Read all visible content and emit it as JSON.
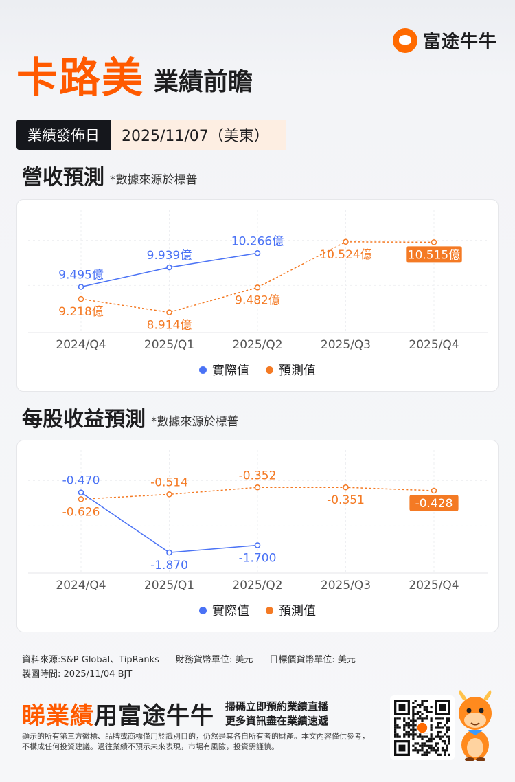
{
  "brand": {
    "name": "富途牛牛"
  },
  "header": {
    "company": "卡路美",
    "title": "業績前瞻",
    "date_label": "業績發佈日",
    "date_value": "2025/11/07（美東）"
  },
  "revenue": {
    "title": "營收預測",
    "source_note": "*數據來源於標普",
    "legend": {
      "actual": "實際值",
      "forecast": "預測值"
    }
  },
  "eps": {
    "title": "每股收益預測",
    "source_note": "*數據來源於標普",
    "legend": {
      "actual": "實際值",
      "forecast": "預測值"
    }
  },
  "colors": {
    "actual": "#4a72f5",
    "forecast": "#f47a24",
    "accent": "#ff5a00"
  },
  "chart_data": [
    {
      "type": "line",
      "categories": [
        "2024/Q4",
        "2025/Q1",
        "2025/Q2",
        "2025/Q3",
        "2025/Q4"
      ],
      "series": [
        {
          "name": "實際值",
          "values": [
            9.495,
            9.939,
            10.266,
            null,
            null
          ],
          "labels": [
            "9.495億",
            "9.939億",
            "10.266億",
            "",
            ""
          ]
        },
        {
          "name": "預測值",
          "values": [
            9.218,
            8.914,
            9.482,
            10.524,
            10.515
          ],
          "labels": [
            "9.218億",
            "8.914億",
            "9.482億",
            "10.524億",
            "10.515億"
          ]
        }
      ],
      "ylim": [
        8.5,
        10.85
      ],
      "highlight_index": 4,
      "legend_position": "bottom-center"
    },
    {
      "type": "line",
      "categories": [
        "2024/Q4",
        "2025/Q1",
        "2025/Q2",
        "2025/Q3",
        "2025/Q4"
      ],
      "series": [
        {
          "name": "實際值",
          "values": [
            -0.47,
            -1.87,
            -1.7,
            null,
            null
          ],
          "labels": [
            "-0.470",
            "-1.870",
            "-1.700",
            "",
            ""
          ]
        },
        {
          "name": "預測值",
          "values": [
            -0.626,
            -0.514,
            -0.352,
            -0.351,
            -0.428
          ],
          "labels": [
            "-0.626",
            "-0.514",
            "-0.352",
            "-0.351",
            "-0.428"
          ]
        }
      ],
      "ylim": [
        -2.3,
        0.1
      ],
      "highlight_index": 4,
      "legend_position": "bottom-center"
    }
  ],
  "footer": {
    "source": "資料來源:S&P Global、TipRanks",
    "currency_fin": "財務貨幣單位: 美元",
    "currency_target": "目標價貨幣單位: 美元",
    "made_time": "製圖時間: 2025/11/04 BJT",
    "cta_highlight": "睇業績",
    "cta_rest": "用富途牛牛",
    "cta_line1": "掃碼立即預約業績直播",
    "cta_line2": "更多資訊盡在業績速遞",
    "disclaimer": "顯示的所有第三方徽標、品牌或商標僅用於識別目的，仍然是其各自所有者的財產。本文內容僅供參考，不構成任何投資建議。過往業績不預示未來表現，市場有風險，投資需謹慎。"
  }
}
